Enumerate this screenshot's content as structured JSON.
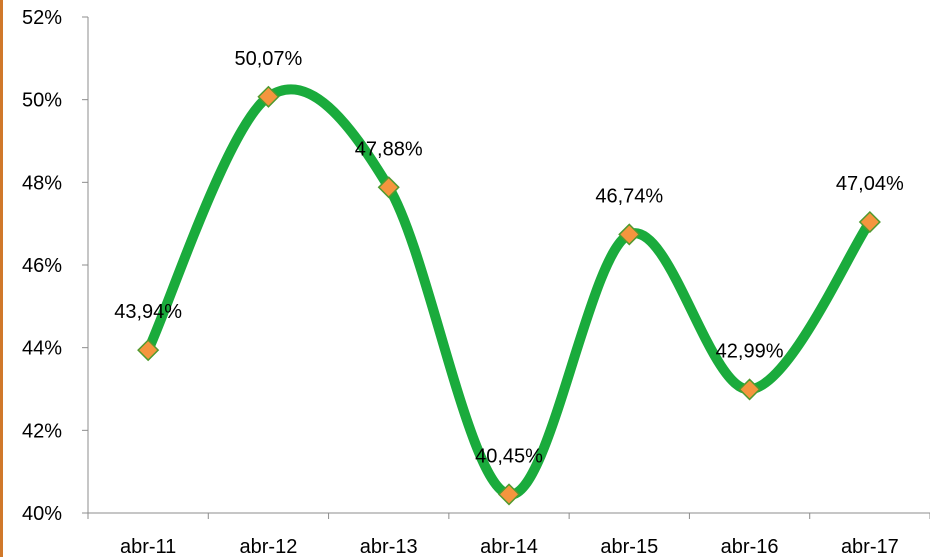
{
  "chart_data": {
    "type": "line",
    "categories": [
      "abr-11",
      "abr-12",
      "abr-13",
      "abr-14",
      "abr-15",
      "abr-16",
      "abr-17"
    ],
    "series": [
      {
        "values": [
          43.94,
          50.07,
          47.88,
          40.45,
          46.74,
          42.99,
          47.04
        ],
        "data_labels": [
          "43,94%",
          "50,07%",
          "47,88%",
          "40,45%",
          "46,74%",
          "42,99%",
          "47,04%"
        ],
        "line_color": "#1aab3c",
        "marker_fill": "#f5953e",
        "marker_stroke": "#4f9a2f",
        "marker": "diamond",
        "smooth": true
      }
    ],
    "yticks": [
      40,
      42,
      44,
      46,
      48,
      50,
      52
    ],
    "ytick_labels": [
      "40%",
      "42%",
      "44%",
      "46%",
      "48%",
      "50%",
      "52%"
    ],
    "ylim": [
      40,
      52
    ],
    "grid": false,
    "legend": "none",
    "title": "",
    "xlabel": "",
    "ylabel": "",
    "frame_color": "#d0782a"
  }
}
